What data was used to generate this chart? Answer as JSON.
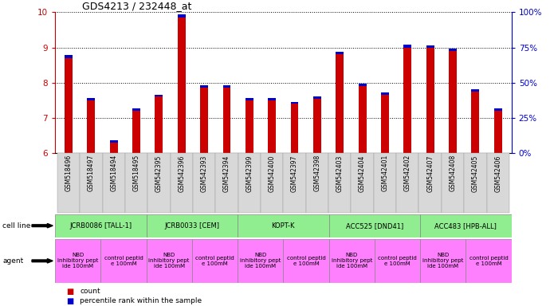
{
  "title": "GDS4213 / 232448_at",
  "samples": [
    "GSM518496",
    "GSM518497",
    "GSM518494",
    "GSM518495",
    "GSM542395",
    "GSM542396",
    "GSM542393",
    "GSM542394",
    "GSM542399",
    "GSM542400",
    "GSM542397",
    "GSM542398",
    "GSM542403",
    "GSM542404",
    "GSM542401",
    "GSM542402",
    "GSM542407",
    "GSM542408",
    "GSM542405",
    "GSM542406"
  ],
  "red_values": [
    8.7,
    7.5,
    6.3,
    7.2,
    7.6,
    9.85,
    7.85,
    7.85,
    7.5,
    7.5,
    7.4,
    7.55,
    8.8,
    7.9,
    7.65,
    9.0,
    9.0,
    8.9,
    7.75,
    7.2
  ],
  "blue_heights": [
    0.08,
    0.06,
    0.06,
    0.07,
    0.06,
    0.08,
    0.07,
    0.07,
    0.06,
    0.06,
    0.06,
    0.06,
    0.08,
    0.06,
    0.06,
    0.08,
    0.06,
    0.07,
    0.06,
    0.06
  ],
  "baseline": 6.0,
  "ylim_left": [
    6,
    10
  ],
  "ylim_right": [
    0,
    100
  ],
  "yticks_left": [
    6,
    7,
    8,
    9,
    10
  ],
  "yticks_right": [
    0,
    25,
    50,
    75,
    100
  ],
  "cell_lines": [
    {
      "label": "JCRB0086 [TALL-1]",
      "start": 0,
      "end": 4,
      "color": "#90EE90"
    },
    {
      "label": "JCRB0033 [CEM]",
      "start": 4,
      "end": 8,
      "color": "#90EE90"
    },
    {
      "label": "KOPT-K",
      "start": 8,
      "end": 12,
      "color": "#90EE90"
    },
    {
      "label": "ACC525 [DND41]",
      "start": 12,
      "end": 16,
      "color": "#90EE90"
    },
    {
      "label": "ACC483 [HPB-ALL]",
      "start": 16,
      "end": 20,
      "color": "#90EE90"
    }
  ],
  "agents": [
    {
      "label": "NBD\ninhibitory pept\nide 100mM",
      "start": 0,
      "end": 2,
      "color": "#FF80FF"
    },
    {
      "label": "control peptid\ne 100mM",
      "start": 2,
      "end": 4,
      "color": "#FF80FF"
    },
    {
      "label": "NBD\ninhibitory pept\nide 100mM",
      "start": 4,
      "end": 6,
      "color": "#FF80FF"
    },
    {
      "label": "control peptid\ne 100mM",
      "start": 6,
      "end": 8,
      "color": "#FF80FF"
    },
    {
      "label": "NBD\ninhibitory pept\nide 100mM",
      "start": 8,
      "end": 10,
      "color": "#FF80FF"
    },
    {
      "label": "control peptid\ne 100mM",
      "start": 10,
      "end": 12,
      "color": "#FF80FF"
    },
    {
      "label": "NBD\ninhibitory pept\nide 100mM",
      "start": 12,
      "end": 14,
      "color": "#FF80FF"
    },
    {
      "label": "control peptid\ne 100mM",
      "start": 14,
      "end": 16,
      "color": "#FF80FF"
    },
    {
      "label": "NBD\ninhibitory pept\nide 100mM",
      "start": 16,
      "end": 18,
      "color": "#FF80FF"
    },
    {
      "label": "control peptid\ne 100mM",
      "start": 18,
      "end": 20,
      "color": "#FF80FF"
    }
  ],
  "bar_color_red": "#CC0000",
  "bar_color_blue": "#0000CC",
  "bar_width": 0.35,
  "grid_color": "black",
  "left_axis_color": "#CC0000",
  "right_axis_color": "#0000CC",
  "legend_red": "count",
  "legend_blue": "percentile rank within the sample",
  "cell_line_bg": "#C8C8C8",
  "agent_nbd_color": "#FF80FF",
  "agent_ctrl_color": "#FF80FF"
}
